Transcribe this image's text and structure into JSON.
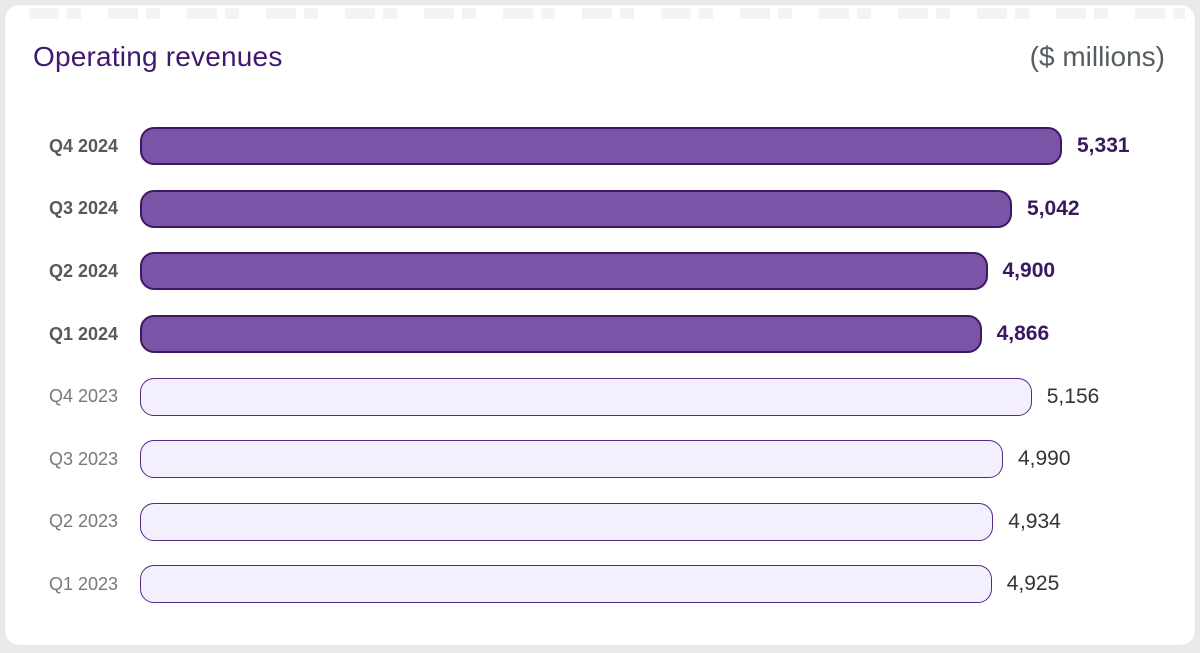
{
  "header": {
    "title": "Operating revenues",
    "unit_label": "($ millions)"
  },
  "colors": {
    "page_bg": "#E9EAEB",
    "card_bg": "#FFFFFF",
    "title": "#40196F",
    "unit": "#565D62",
    "bar_current_fill": "#7B53A7",
    "bar_current_border": "#3B1A63",
    "bar_prior_fill": "#F3EFFC",
    "bar_prior_border": "#53298A",
    "value_current": "#3A185F",
    "value_prior": "#323439",
    "label_current": "#58595B",
    "label_prior": "#77787B"
  },
  "chart_data": {
    "type": "bar",
    "orientation": "horizontal",
    "title": "Operating revenues",
    "unit": "$ millions",
    "axis_max": 5331,
    "legend_position": "none",
    "grid": false,
    "rows": [
      {
        "label": "Q4 2024",
        "value": 5331,
        "display": "5,331",
        "style": "current"
      },
      {
        "label": "Q3 2024",
        "value": 5042,
        "display": "5,042",
        "style": "current"
      },
      {
        "label": "Q2 2024",
        "value": 4900,
        "display": "4,900",
        "style": "current"
      },
      {
        "label": "Q1 2024",
        "value": 4866,
        "display": "4,866",
        "style": "current"
      },
      {
        "label": "Q4 2023",
        "value": 5156,
        "display": "5,156",
        "style": "prior"
      },
      {
        "label": "Q3 2023",
        "value": 4990,
        "display": "4,990",
        "style": "prior"
      },
      {
        "label": "Q2 2023",
        "value": 4934,
        "display": "4,934",
        "style": "prior"
      },
      {
        "label": "Q1 2023",
        "value": 4925,
        "display": "4,925",
        "style": "prior"
      }
    ]
  }
}
